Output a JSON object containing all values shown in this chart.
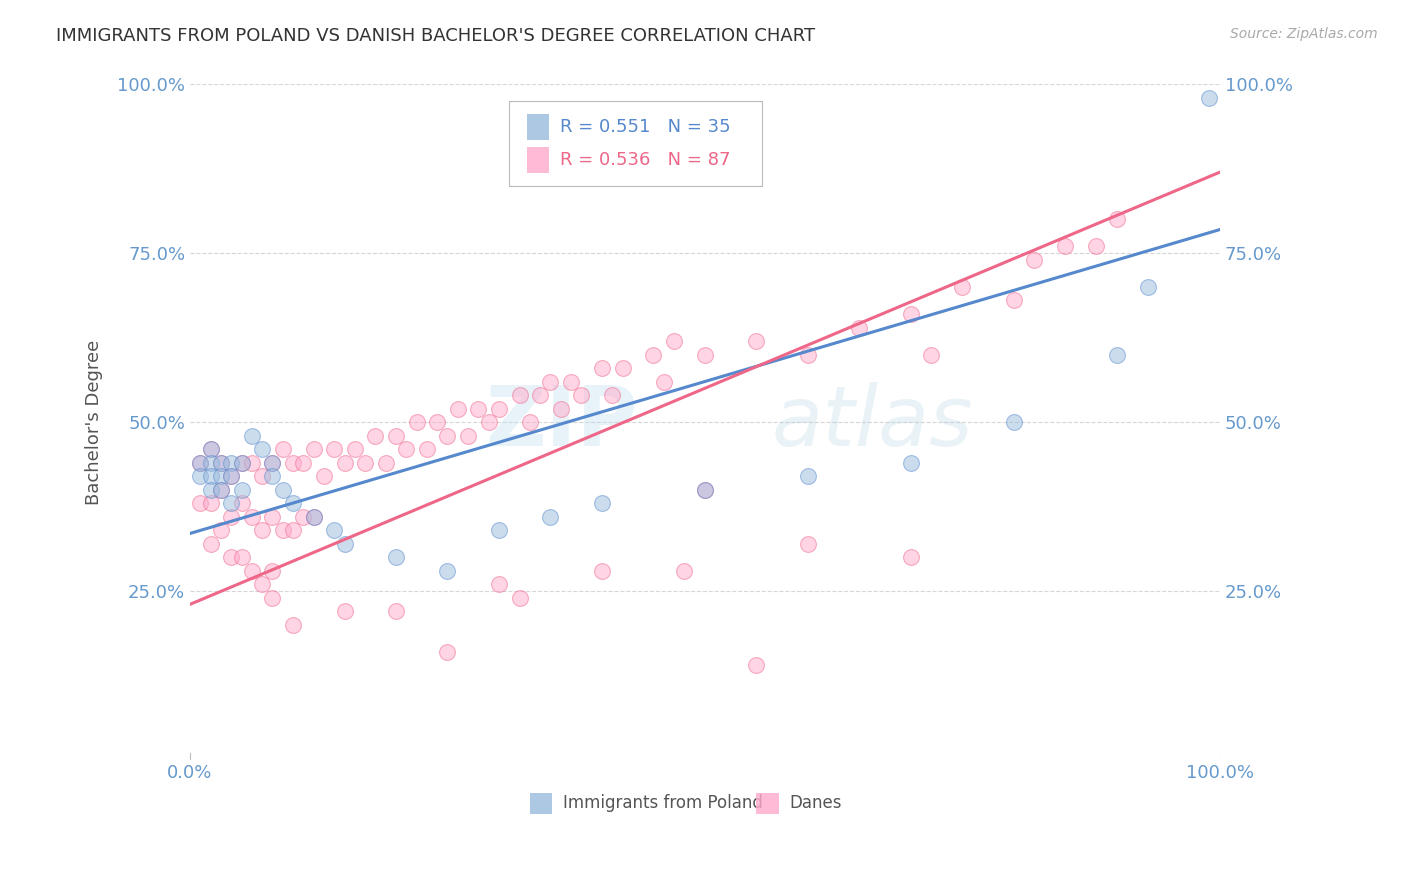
{
  "title": "IMMIGRANTS FROM POLAND VS DANISH BACHELOR'S DEGREE CORRELATION CHART",
  "source_text": "Source: ZipAtlas.com",
  "ylabel": "Bachelor's Degree",
  "watermark_zip": "ZIP",
  "watermark_atlas": "atlas",
  "legend_blue_label": "Immigrants from Poland",
  "legend_pink_label": "Danes",
  "legend_blue_r": "R = 0.551",
  "legend_blue_n": "N = 35",
  "legend_pink_r": "R = 0.536",
  "legend_pink_n": "N = 87",
  "blue_color": "#99BBDD",
  "pink_color": "#FFAACC",
  "blue_line_color": "#5588CC",
  "pink_line_color": "#EE6688",
  "background_color": "#FFFFFF",
  "grid_color": "#CCCCCC",
  "title_color": "#333333",
  "tick_label_color": "#6699CC",
  "source_color": "#AAAAAA",
  "blue_scatter_x": [
    0.01,
    0.01,
    0.02,
    0.02,
    0.02,
    0.02,
    0.03,
    0.03,
    0.03,
    0.04,
    0.04,
    0.04,
    0.05,
    0.05,
    0.06,
    0.07,
    0.08,
    0.08,
    0.09,
    0.1,
    0.12,
    0.14,
    0.15,
    0.2,
    0.25,
    0.3,
    0.35,
    0.4,
    0.5,
    0.6,
    0.7,
    0.8,
    0.9,
    0.93,
    0.99
  ],
  "blue_scatter_y": [
    0.44,
    0.42,
    0.46,
    0.44,
    0.42,
    0.4,
    0.44,
    0.42,
    0.4,
    0.44,
    0.42,
    0.38,
    0.44,
    0.4,
    0.48,
    0.46,
    0.44,
    0.42,
    0.4,
    0.38,
    0.36,
    0.34,
    0.32,
    0.3,
    0.28,
    0.34,
    0.36,
    0.38,
    0.4,
    0.42,
    0.44,
    0.5,
    0.6,
    0.7,
    0.98
  ],
  "pink_scatter_x": [
    0.01,
    0.01,
    0.02,
    0.02,
    0.02,
    0.03,
    0.03,
    0.03,
    0.04,
    0.04,
    0.04,
    0.05,
    0.05,
    0.05,
    0.06,
    0.06,
    0.06,
    0.07,
    0.07,
    0.08,
    0.08,
    0.08,
    0.09,
    0.09,
    0.1,
    0.1,
    0.11,
    0.11,
    0.12,
    0.12,
    0.13,
    0.14,
    0.15,
    0.16,
    0.17,
    0.18,
    0.19,
    0.2,
    0.21,
    0.22,
    0.23,
    0.24,
    0.25,
    0.26,
    0.27,
    0.28,
    0.29,
    0.3,
    0.32,
    0.33,
    0.34,
    0.35,
    0.36,
    0.37,
    0.38,
    0.4,
    0.41,
    0.42,
    0.45,
    0.46,
    0.47,
    0.5,
    0.5,
    0.55,
    0.6,
    0.65,
    0.7,
    0.72,
    0.75,
    0.8,
    0.82,
    0.85,
    0.88,
    0.9,
    0.1,
    0.15,
    0.2,
    0.07,
    0.08,
    0.3,
    0.32,
    0.4,
    0.25,
    0.48,
    0.7,
    0.6,
    0.55
  ],
  "pink_scatter_y": [
    0.44,
    0.38,
    0.46,
    0.38,
    0.32,
    0.44,
    0.4,
    0.34,
    0.42,
    0.36,
    0.3,
    0.44,
    0.38,
    0.3,
    0.44,
    0.36,
    0.28,
    0.42,
    0.34,
    0.44,
    0.36,
    0.28,
    0.46,
    0.34,
    0.44,
    0.34,
    0.44,
    0.36,
    0.46,
    0.36,
    0.42,
    0.46,
    0.44,
    0.46,
    0.44,
    0.48,
    0.44,
    0.48,
    0.46,
    0.5,
    0.46,
    0.5,
    0.48,
    0.52,
    0.48,
    0.52,
    0.5,
    0.52,
    0.54,
    0.5,
    0.54,
    0.56,
    0.52,
    0.56,
    0.54,
    0.58,
    0.54,
    0.58,
    0.6,
    0.56,
    0.62,
    0.6,
    0.4,
    0.62,
    0.6,
    0.64,
    0.66,
    0.6,
    0.7,
    0.68,
    0.74,
    0.76,
    0.76,
    0.8,
    0.2,
    0.22,
    0.22,
    0.26,
    0.24,
    0.26,
    0.24,
    0.28,
    0.16,
    0.28,
    0.3,
    0.32,
    0.14
  ],
  "blue_line_y_start": 0.335,
  "blue_line_y_end": 0.785,
  "pink_line_y_start": 0.23,
  "pink_line_y_end": 0.87,
  "marker_size": 130,
  "marker_alpha": 0.5,
  "line_width": 2.2,
  "xlim": [
    0.0,
    1.0
  ],
  "ylim": [
    0.0,
    1.0
  ]
}
